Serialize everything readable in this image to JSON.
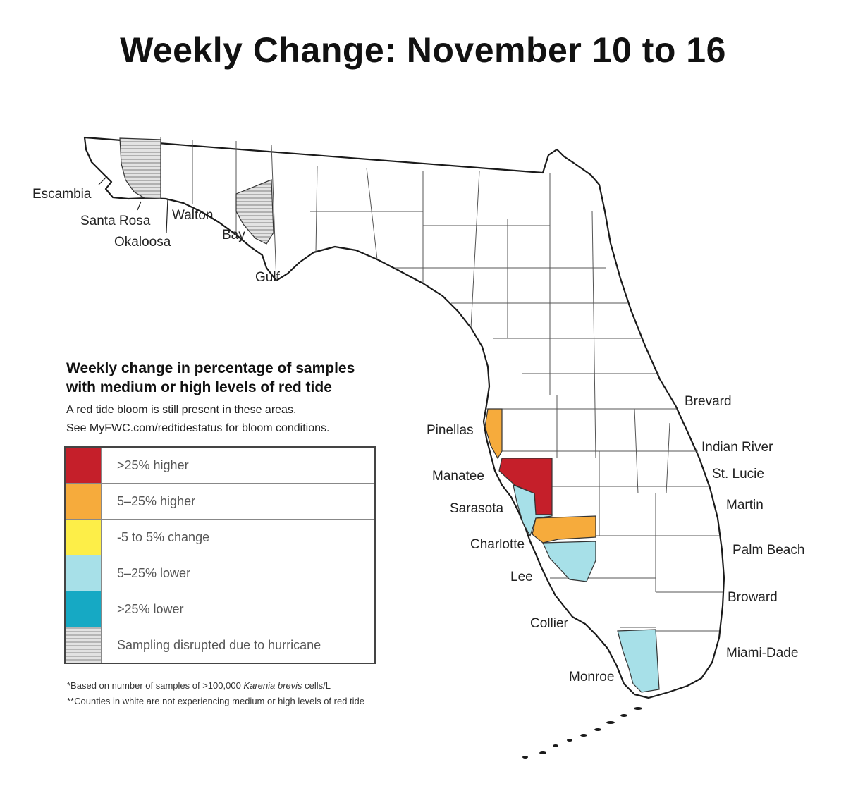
{
  "title": "Weekly Change: November 10 to 16",
  "legend": {
    "heading_line1": "Weekly change in percentage of samples",
    "heading_line2": "with medium or high levels of red tide",
    "subtitle_line1": "A red tide bloom is still present in these areas.",
    "subtitle_line2": "See MyFWC.com/redtidestatus for bloom conditions.",
    "items": [
      {
        "label": ">25% higher",
        "color": "#c51f2a"
      },
      {
        "label": "5–25% higher",
        "color": "#f6ab3c"
      },
      {
        "label": "-5 to 5% change",
        "color": "#fdee48"
      },
      {
        "label": "5–25% lower",
        "color": "#a7e0e8"
      },
      {
        "label": ">25% lower",
        "color": "#16a9c4"
      },
      {
        "label": "Sampling disrupted due to hurricane",
        "color": "#c8c8c8"
      }
    ]
  },
  "footnotes": {
    "note1_prefix": "*Based on number of samples of >100,000 ",
    "note1_species": "Karenia brevis",
    "note1_suffix": " cells/L",
    "note2": "**Counties in white are not experiencing medium or high levels of red tide"
  },
  "counties": {
    "escambia": "Escambia",
    "santa_rosa": "Santa Rosa",
    "okaloosa": "Okaloosa",
    "walton": "Walton",
    "bay": "Bay",
    "gulf": "Gulf",
    "pinellas": "Pinellas",
    "manatee": "Manatee",
    "sarasota": "Sarasota",
    "charlotte": "Charlotte",
    "lee": "Lee",
    "collier": "Collier",
    "monroe": "Monroe",
    "brevard": "Brevard",
    "indian_river": "Indian River",
    "st_lucie": "St. Lucie",
    "martin": "Martin",
    "palm_beach": "Palm Beach",
    "broward": "Broward",
    "miami_dade": "Miami-Dade"
  },
  "county_status": {
    "Okaloosa": "Sampling disrupted due to hurricane",
    "Bay": "Sampling disrupted due to hurricane",
    "Pinellas": "5–25% higher",
    "Manatee": ">25% higher",
    "Sarasota": "5–25% lower",
    "Charlotte": "5–25% higher",
    "Lee": "5–25% lower",
    "Monroe": "5–25% lower"
  }
}
